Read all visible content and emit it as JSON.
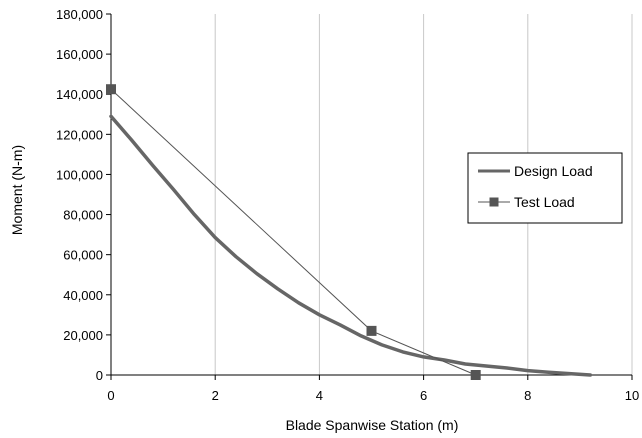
{
  "chart_data": {
    "type": "line",
    "xlabel": "Blade Spanwise Station (m)",
    "ylabel": "Moment (N-m)",
    "xlim": [
      0,
      10
    ],
    "ylim": [
      0,
      180000
    ],
    "x_ticks": [
      0,
      2,
      4,
      6,
      8,
      10
    ],
    "x_tick_labels": [
      "0",
      "2",
      "4",
      "6",
      "8",
      "10"
    ],
    "y_ticks": [
      0,
      20000,
      40000,
      60000,
      80000,
      100000,
      120000,
      140000,
      160000,
      180000
    ],
    "y_tick_labels": [
      "0",
      "20,000",
      "40,000",
      "60,000",
      "80,000",
      "100,000",
      "120,000",
      "140,000",
      "160,000",
      "180,000"
    ],
    "grid": "vertical",
    "legend_position": "right",
    "series": [
      {
        "name": "Design Load",
        "style": "thick-line",
        "color": "#666666",
        "x": [
          0,
          0.4,
          0.8,
          1.2,
          1.6,
          2.0,
          2.4,
          2.8,
          3.2,
          3.6,
          4.0,
          4.4,
          4.8,
          5.2,
          5.6,
          6.0,
          6.4,
          6.8,
          7.2,
          7.6,
          8.0,
          8.4,
          8.8,
          9.2
        ],
        "y": [
          129000,
          117000,
          104500,
          92500,
          80000,
          68500,
          59000,
          50500,
          43000,
          36000,
          30000,
          25000,
          19500,
          15000,
          11500,
          9000,
          7500,
          5500,
          4500,
          3500,
          2200,
          1400,
          700,
          0
        ]
      },
      {
        "name": "Test Load",
        "style": "line-square-markers",
        "color": "#555555",
        "x": [
          0,
          5,
          7
        ],
        "y": [
          142500,
          22000,
          0
        ]
      }
    ]
  },
  "legend": {
    "items": [
      "Design Load",
      "Test Load"
    ]
  }
}
